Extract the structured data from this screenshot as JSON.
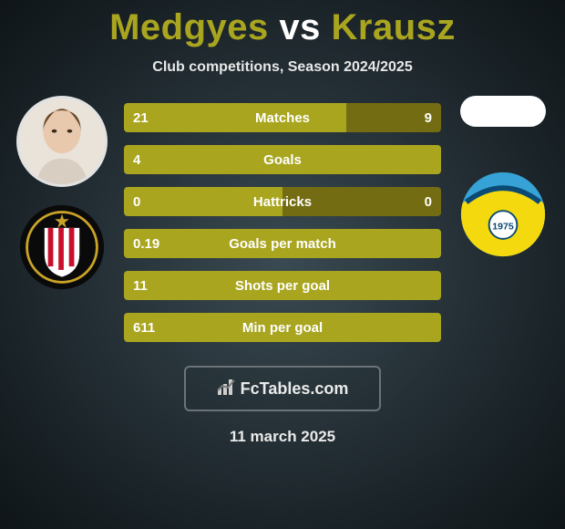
{
  "title": {
    "player1": "Medgyes",
    "vs": "vs",
    "player2": "Krausz",
    "player1_color": "#a9a51f",
    "player2_color": "#a9a51f"
  },
  "subtitle": "Club competitions, Season 2024/2025",
  "bars": {
    "left_color": "#a9a51f",
    "right_color": "#736c12",
    "rows": [
      {
        "label": "Matches",
        "left": "21",
        "right": "9",
        "left_pct": 70,
        "right_pct": 30
      },
      {
        "label": "Goals",
        "left": "4",
        "right": "0",
        "left_pct": 100,
        "right_pct": 0
      },
      {
        "label": "Hattricks",
        "left": "0",
        "right": "0",
        "left_pct": 50,
        "right_pct": 50
      },
      {
        "label": "Goals per match",
        "left": "0.19",
        "right": "",
        "left_pct": 100,
        "right_pct": 0
      },
      {
        "label": "Shots per goal",
        "left": "11",
        "right": "",
        "left_pct": 100,
        "right_pct": 0
      },
      {
        "label": "Min per goal",
        "left": "611",
        "right": "",
        "left_pct": 100,
        "right_pct": 0
      }
    ]
  },
  "footer": {
    "brand_prefix": "Fc",
    "brand_suffix": "Tables",
    "brand_domain": ".com"
  },
  "date": "11 march 2025",
  "crest_left": {
    "bg": "#0a0a0a",
    "stripe1": "#c8102e",
    "stripe2": "#ffffff",
    "ring": "#c9a227"
  },
  "crest_right": {
    "bg": "#37a2d6",
    "accent": "#f4d90f",
    "year": "1975"
  }
}
